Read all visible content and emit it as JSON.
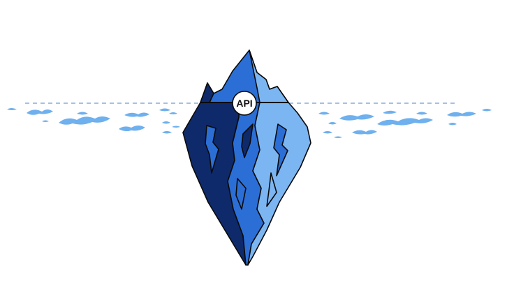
{
  "diagram": {
    "label": "API"
  },
  "colors": {
    "background": "#ffffff",
    "waterline": "#6f9bd6",
    "waves": "#6fb0ee",
    "ice_darkest": "#0e2a6b",
    "ice_mid": "#2b6fd6",
    "ice_light": "#7cb6f2",
    "outline": "#0a0a0a",
    "badge_fill": "#ffffff"
  }
}
